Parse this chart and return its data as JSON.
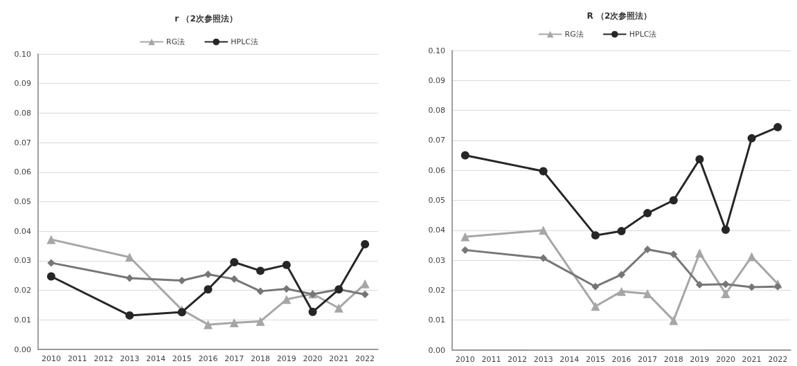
{
  "chart_data": [
    {
      "type": "line",
      "title": "r （2次参照法）",
      "categories": [
        "2010",
        "2011",
        "2012",
        "2013",
        "2014",
        "2015",
        "2016",
        "2017",
        "2018",
        "2019",
        "2020",
        "2021",
        "2022"
      ],
      "series": [
        {
          "name": "RG法",
          "color": "#a6a6a6",
          "marker": "triangle",
          "values": [
            0.0372,
            null,
            null,
            0.0312,
            null,
            0.0134,
            0.0084,
            0.009,
            0.0095,
            0.0169,
            0.0188,
            0.014,
            0.0222
          ]
        },
        {
          "color": "#767676",
          "marker": "diamond",
          "values": [
            0.0293,
            null,
            null,
            0.0241,
            null,
            0.0233,
            0.0254,
            0.0238,
            0.0197,
            0.0205,
            0.0187,
            0.0203,
            0.0186
          ]
        },
        {
          "name": "HPLC法",
          "color": "#262626",
          "marker": "circle",
          "values": [
            0.0247,
            null,
            null,
            0.0115,
            null,
            0.0126,
            0.0203,
            0.0295,
            0.0266,
            0.0286,
            0.0127,
            0.0203,
            0.0356
          ]
        }
      ],
      "ylim": [
        0,
        0.1
      ],
      "yticks": [
        {
          "value": 0,
          "label": "0.00"
        },
        {
          "value": 0.01,
          "label": "0.01"
        },
        {
          "value": 0.02,
          "label": "0.02"
        },
        {
          "value": 0.03,
          "label": "0.03"
        },
        {
          "value": 0.04,
          "label": "0.04"
        },
        {
          "value": 0.05,
          "label": "0.05"
        },
        {
          "value": 0.06,
          "label": "0.06"
        },
        {
          "value": 0.07,
          "label": "0.07"
        },
        {
          "value": 0.08,
          "label": "0.08"
        },
        {
          "value": 0.09,
          "label": "0.09"
        },
        {
          "value": 0.1,
          "label": "0.10"
        }
      ],
      "grid": "y",
      "legend": "top",
      "line_style": "solid"
    },
    {
      "type": "line",
      "title": "R （2次参照法）",
      "categories": [
        "2010",
        "2011",
        "2012",
        "2013",
        "2014",
        "2015",
        "2016",
        "2017",
        "2018",
        "2019",
        "2020",
        "2021",
        "2022"
      ],
      "series": [
        {
          "name": "RG法",
          "color": "#a6a6a6",
          "marker": "triangle",
          "values": [
            0.0378,
            null,
            null,
            0.04,
            null,
            0.0146,
            0.0196,
            0.0188,
            0.0099,
            0.0324,
            0.0188,
            0.0312,
            0.0221
          ]
        },
        {
          "color": "#767676",
          "marker": "diamond",
          "values": [
            0.0334,
            null,
            null,
            0.0307,
            null,
            0.0212,
            0.0252,
            0.0336,
            0.032,
            0.0218,
            0.022,
            0.021,
            0.0212
          ]
        },
        {
          "name": "HPLC法",
          "color": "#262626",
          "marker": "circle",
          "values": [
            0.065,
            null,
            null,
            0.0597,
            null,
            0.0383,
            0.0397,
            0.0457,
            0.05,
            0.0637,
            0.0402,
            0.0707,
            0.0744
          ]
        }
      ],
      "ylim": [
        0,
        0.1
      ],
      "yticks": [
        {
          "value": 0,
          "label": "0.00"
        },
        {
          "value": 0.01,
          "label": "0.01"
        },
        {
          "value": 0.02,
          "label": "0.02"
        },
        {
          "value": 0.03,
          "label": "0.03"
        },
        {
          "value": 0.04,
          "label": "0.04"
        },
        {
          "value": 0.05,
          "label": "0.05"
        },
        {
          "value": 0.06,
          "label": "0.06"
        },
        {
          "value": 0.07,
          "label": "0.07"
        },
        {
          "value": 0.08,
          "label": "0.08"
        },
        {
          "value": 0.09,
          "label": "0.09"
        },
        {
          "value": 0.1,
          "label": "0.10"
        }
      ],
      "grid": "y",
      "legend": "top",
      "line_style": "solid"
    }
  ]
}
